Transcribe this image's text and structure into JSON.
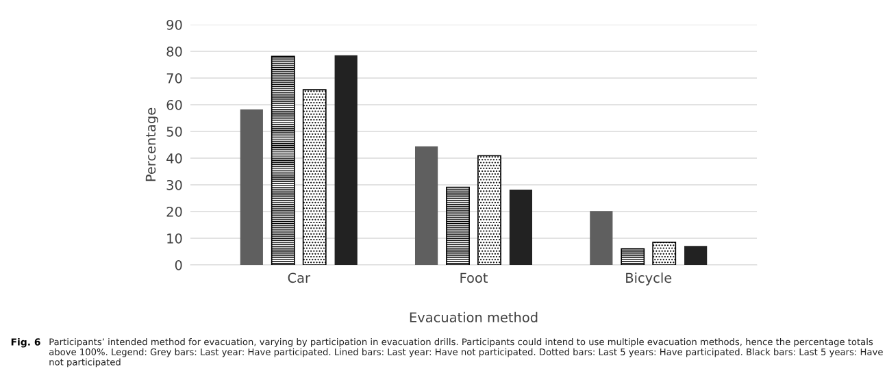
{
  "chart_data": {
    "type": "bar",
    "xlabel": "Evacuation method",
    "ylabel": "Percentage",
    "categories": [
      "Car",
      "Foot",
      "Bicycle"
    ],
    "series": [
      {
        "color": "#5f5f5f",
        "values": [
          58.3,
          44.4,
          20.2
        ]
      },
      {
        "color": "#000000",
        "values": [
          78.1,
          29.1,
          6.1
        ]
      },
      {
        "color": "#000000",
        "values": [
          65.6,
          40.9,
          8.5
        ]
      },
      {
        "color": "#222222",
        "values": [
          78.5,
          28.2,
          7.1
        ]
      }
    ],
    "ylim": [
      0,
      90
    ],
    "yticks": [
      0,
      10,
      20,
      30,
      40,
      50,
      60,
      70,
      80,
      90
    ],
    "grid": "y",
    "legend": false,
    "annotations": [
      "Fig. 6",
      "Participants’ intended method for evacuation, varying by participation in evacuation drills. Participants could intend to use multiple evacuation methods, hence the percentage totals above 100%. Legend: Grey bars: Last year: Have participated. Lined bars: Last year: Have not participated. Dotted bars: Last 5 years: Have participated. Black bars: Last 5 years: Have not participated"
    ]
  }
}
